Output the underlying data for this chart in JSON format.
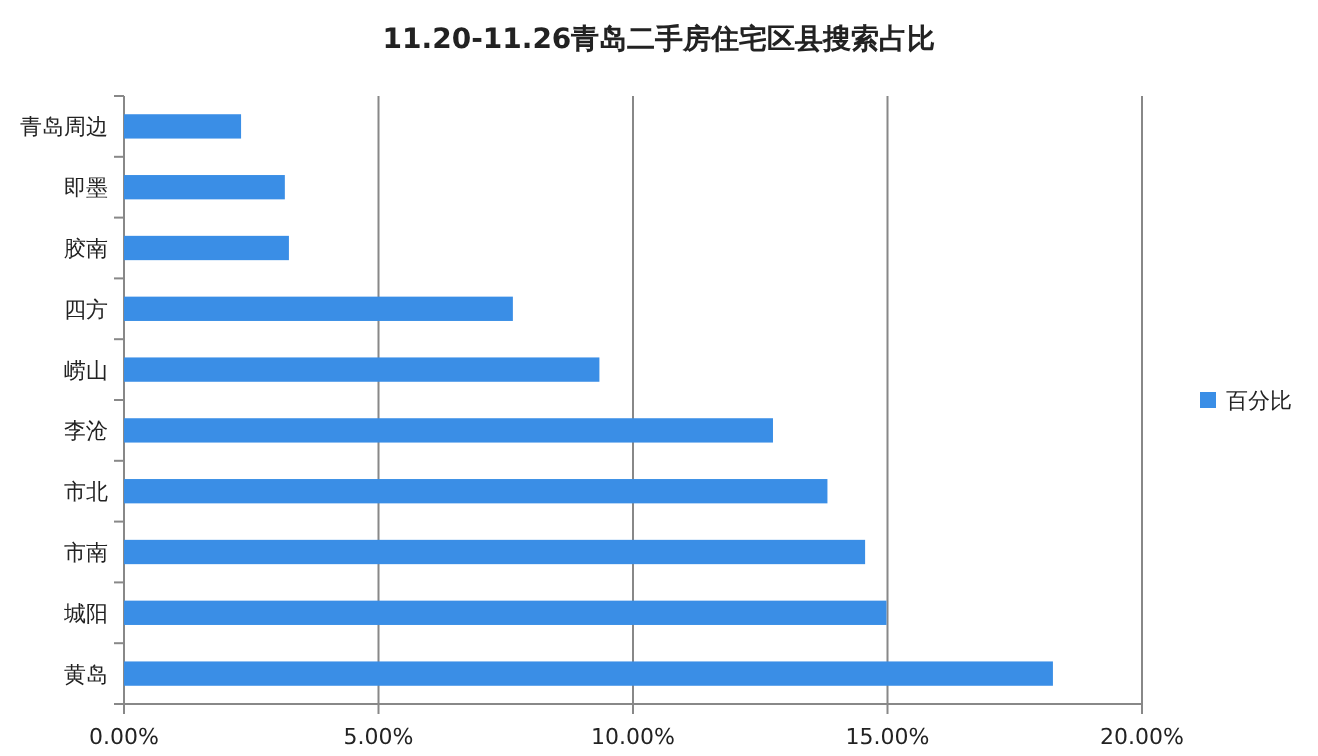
{
  "chart_data": {
    "type": "bar",
    "orientation": "horizontal",
    "title": "11.20-11.26青岛二手房住宅区县搜索占比",
    "categories": [
      "青岛周边",
      "即墨",
      "胶南",
      "四方",
      "崂山",
      "李沧",
      "市北",
      "市南",
      "城阳",
      "黄岛"
    ],
    "series": [
      {
        "name": "百分比",
        "color": "#3a8ee6",
        "values": [
          2.3,
          3.16,
          3.24,
          7.64,
          9.34,
          12.75,
          13.82,
          14.56,
          14.98,
          18.25
        ]
      }
    ],
    "xlim": [
      0,
      20
    ],
    "xticks": [
      {
        "value": 0,
        "label": "0.00%"
      },
      {
        "value": 5,
        "label": "5.00%"
      },
      {
        "value": 10,
        "label": "10.00%"
      },
      {
        "value": 15,
        "label": "15.00%"
      },
      {
        "value": 20,
        "label": "20.00%"
      }
    ],
    "grid": "x",
    "legend": "right"
  }
}
